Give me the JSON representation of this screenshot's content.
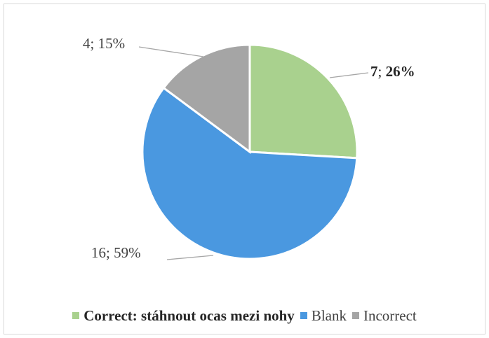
{
  "chart_data": {
    "type": "pie",
    "title": "",
    "slices": [
      {
        "name": "Correct: stáhnout ocas mezi nohy",
        "value": 7,
        "percent": 26,
        "label": "7; 26%",
        "color": "#a9d18e",
        "bold": true
      },
      {
        "name": "Blank",
        "value": 16,
        "percent": 59,
        "label": "16; 59%",
        "color": "#4a98e0",
        "bold": false
      },
      {
        "name": "Incorrect",
        "value": 4,
        "percent": 15,
        "label": "4; 15%",
        "color": "#a5a5a5",
        "bold": false
      }
    ],
    "legend_position": "bottom"
  }
}
